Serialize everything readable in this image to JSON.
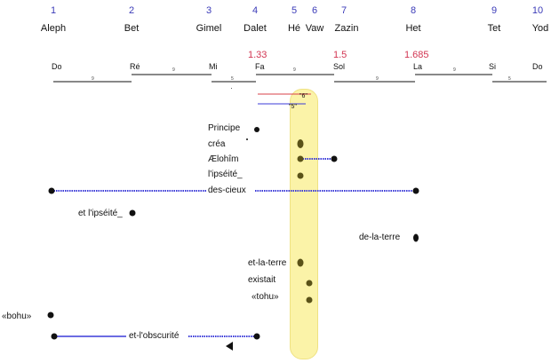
{
  "hebrew_scale": [
    {
      "number": "1",
      "letter": "Aleph"
    },
    {
      "number": "2",
      "letter": "Bet"
    },
    {
      "number": "3",
      "letter": "Gimel"
    },
    {
      "number": "4",
      "letter": "Dalet"
    },
    {
      "number": "5",
      "letter": "Hé"
    },
    {
      "number": "6",
      "letter": "Vaw"
    },
    {
      "number": "7",
      "letter": "Zazin"
    },
    {
      "number": "8",
      "letter": "Het"
    },
    {
      "number": "9",
      "letter": "Tet"
    },
    {
      "number": "10",
      "letter": "Yod"
    }
  ],
  "ratios": [
    "1.33",
    "1.5",
    "1.685"
  ],
  "notes": [
    "Do",
    "Ré",
    "Mi",
    "Fa",
    "Sol",
    "La",
    "Si",
    "Do"
  ],
  "interval_marks": [
    "9",
    "9",
    "5",
    "9",
    "9",
    "9",
    "5"
  ],
  "quint_labels": [
    "\"6\"",
    "\"5\""
  ],
  "words": [
    "Principe",
    "créa",
    "Ælohîm",
    "l'ipséité_",
    "des-cieux",
    "et l'ipséité_",
    "de-la-terre",
    "et-la-terre",
    "existait",
    "«tohu»",
    "«bohu»",
    "et-l'obscurité"
  ],
  "colors": {
    "number": "#3b3bb8",
    "ratio": "#d23552",
    "highlight": "#fbf3a8",
    "blue_line": "#3b3bd8",
    "red_line": "#d8404a",
    "dot": "#111111",
    "olive_dot": "#5a5218"
  }
}
